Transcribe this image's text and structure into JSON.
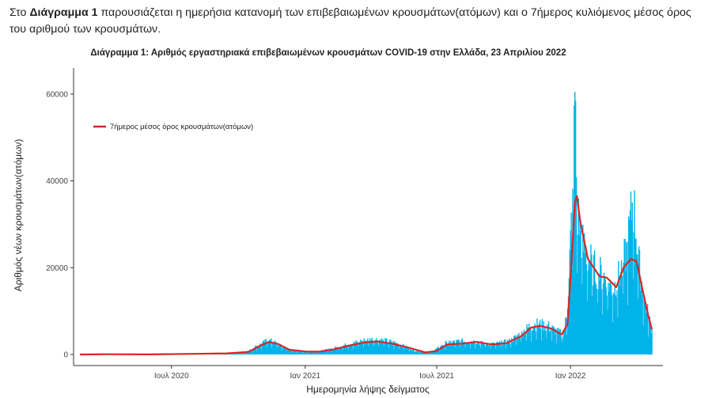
{
  "intro": {
    "prefix": "Στο ",
    "bold": "Διάγραμμα 1",
    "text": " παρουσιάζεται η ημερήσια κατανομή των επιβεβαιωμένων κρουσμάτων(ατόμων) και ο 7ήμερος κυλιόμενος μέσος όρος του αριθμού των κρουσμάτων."
  },
  "colors": {
    "bars": "#00b4ea",
    "line": "#d62728",
    "axis": "#333333"
  },
  "chart_data": {
    "type": "bar",
    "title": "Διάγραμμα 1: Αριθμός εργαστηριακά επιβεβαιωμένων κρουσμάτων COVID-19 στην Ελλάδα, 23 Απριλίου 2022",
    "xlabel": "Ημερομηνία λήψης δείγματος",
    "ylabel": "Αριθμός νέων κρουσμάτων(ατόμων)",
    "x_range": [
      "2020-02-26",
      "2022-04-23"
    ],
    "ylim": [
      0,
      66000
    ],
    "yticks": [
      0,
      20000,
      40000,
      60000
    ],
    "ytick_labels": [
      "0",
      "20000",
      "40000",
      "60000"
    ],
    "xticks": [
      {
        "date": "2020-07-01",
        "label": "Ιουλ 2020"
      },
      {
        "date": "2021-01-01",
        "label": "Ιαν 2021"
      },
      {
        "date": "2021-07-01",
        "label": "Ιουλ 2021"
      },
      {
        "date": "2022-01-01",
        "label": "Ιαν 2022"
      }
    ],
    "legend": {
      "position": "top-left",
      "entries": [
        "7ήμερος μέσος όρος κρουσμάτων(ατόμων)"
      ]
    },
    "grid": false,
    "series": [
      {
        "kind": "bar",
        "points": [
          [
            "2020-02-26",
            0
          ],
          [
            "2020-04-01",
            80
          ],
          [
            "2020-05-01",
            20
          ],
          [
            "2020-06-01",
            10
          ],
          [
            "2020-07-01",
            30
          ],
          [
            "2020-08-01",
            180
          ],
          [
            "2020-08-25",
            280
          ],
          [
            "2020-09-15",
            300
          ],
          [
            "2020-10-01",
            400
          ],
          [
            "2020-10-15",
            800
          ],
          [
            "2020-10-25",
            1800
          ],
          [
            "2020-11-05",
            2700
          ],
          [
            "2020-11-10",
            3300
          ],
          [
            "2020-11-18",
            2900
          ],
          [
            "2020-12-01",
            1700
          ],
          [
            "2020-12-15",
            950
          ],
          [
            "2021-01-01",
            600
          ],
          [
            "2021-01-15",
            700
          ],
          [
            "2021-02-01",
            1100
          ],
          [
            "2021-02-15",
            1700
          ],
          [
            "2021-03-01",
            2300
          ],
          [
            "2021-03-20",
            3100
          ],
          [
            "2021-04-05",
            3500
          ],
          [
            "2021-04-20",
            3200
          ],
          [
            "2021-05-10",
            2400
          ],
          [
            "2021-06-01",
            900
          ],
          [
            "2021-06-20",
            500
          ],
          [
            "2021-07-01",
            1300
          ],
          [
            "2021-07-15",
            2700
          ],
          [
            "2021-08-01",
            3000
          ],
          [
            "2021-08-20",
            3100
          ],
          [
            "2021-09-01",
            2600
          ],
          [
            "2021-09-20",
            2400
          ],
          [
            "2021-10-10",
            3100
          ],
          [
            "2021-10-25",
            4800
          ],
          [
            "2021-11-05",
            6300
          ],
          [
            "2021-11-15",
            6900
          ],
          [
            "2021-12-01",
            6500
          ],
          [
            "2021-12-15",
            5000
          ],
          [
            "2021-12-22",
            4700
          ],
          [
            "2021-12-27",
            9000
          ],
          [
            "2022-01-01",
            26000
          ],
          [
            "2022-01-05",
            38000
          ],
          [
            "2022-01-07",
            60500
          ],
          [
            "2022-01-10",
            33000
          ],
          [
            "2022-01-18",
            25000
          ],
          [
            "2022-02-01",
            20000
          ],
          [
            "2022-02-15",
            18000
          ],
          [
            "2022-03-01",
            15000
          ],
          [
            "2022-03-10",
            18500
          ],
          [
            "2022-03-20",
            24000
          ],
          [
            "2022-03-28",
            36000
          ],
          [
            "2022-04-05",
            21000
          ],
          [
            "2022-04-12",
            13000
          ],
          [
            "2022-04-18",
            9000
          ],
          [
            "2022-04-23",
            5500
          ]
        ]
      },
      {
        "kind": "line",
        "name": "7ήμερος μέσος όρος κρουσμάτων(ατόμων)",
        "points": [
          [
            "2020-02-26",
            0
          ],
          [
            "2020-04-01",
            50
          ],
          [
            "2020-06-01",
            10
          ],
          [
            "2020-08-01",
            150
          ],
          [
            "2020-09-15",
            250
          ],
          [
            "2020-10-15",
            600
          ],
          [
            "2020-11-01",
            2100
          ],
          [
            "2020-11-12",
            2900
          ],
          [
            "2020-11-25",
            2400
          ],
          [
            "2020-12-10",
            1100
          ],
          [
            "2021-01-01",
            700
          ],
          [
            "2021-01-20",
            650
          ],
          [
            "2021-02-10",
            1200
          ],
          [
            "2021-03-01",
            2000
          ],
          [
            "2021-03-25",
            2800
          ],
          [
            "2021-04-10",
            3000
          ],
          [
            "2021-05-01",
            2500
          ],
          [
            "2021-05-25",
            1500
          ],
          [
            "2021-06-15",
            500
          ],
          [
            "2021-07-01",
            800
          ],
          [
            "2021-07-15",
            2300
          ],
          [
            "2021-08-05",
            2500
          ],
          [
            "2021-08-25",
            2900
          ],
          [
            "2021-09-15",
            2300
          ],
          [
            "2021-10-05",
            2600
          ],
          [
            "2021-10-25",
            4200
          ],
          [
            "2021-11-08",
            6200
          ],
          [
            "2021-11-20",
            6600
          ],
          [
            "2021-12-05",
            6000
          ],
          [
            "2021-12-20",
            4600
          ],
          [
            "2021-12-28",
            7000
          ],
          [
            "2022-01-02",
            20000
          ],
          [
            "2022-01-07",
            35000
          ],
          [
            "2022-01-10",
            36500
          ],
          [
            "2022-01-14",
            31000
          ],
          [
            "2022-01-25",
            22000
          ],
          [
            "2022-02-10",
            18000
          ],
          [
            "2022-02-20",
            17700
          ],
          [
            "2022-03-05",
            15500
          ],
          [
            "2022-03-15",
            20000
          ],
          [
            "2022-03-25",
            22000
          ],
          [
            "2022-04-02",
            21500
          ],
          [
            "2022-04-10",
            15000
          ],
          [
            "2022-04-18",
            9000
          ],
          [
            "2022-04-23",
            5800
          ]
        ]
      }
    ]
  }
}
